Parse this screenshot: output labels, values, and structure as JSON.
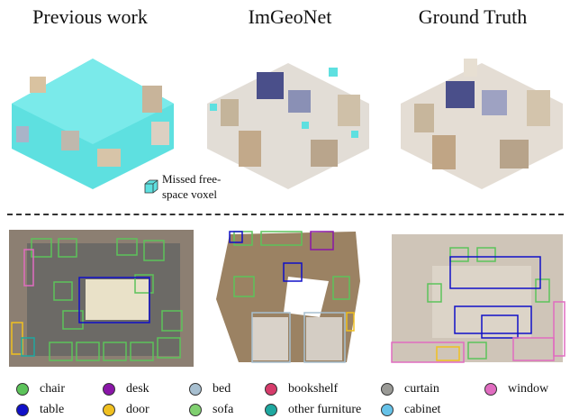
{
  "titles": [
    "Previous work",
    "ImGeoNet",
    "Ground Truth"
  ],
  "note": {
    "line1": "Missed free-",
    "line2": "space voxel",
    "color": "#5ee0e0"
  },
  "legend": [
    {
      "label": "chair",
      "color": "#5cc35a"
    },
    {
      "label": "desk",
      "color": "#8a16a8"
    },
    {
      "label": "bed",
      "color": "#a7bfd0"
    },
    {
      "label": "bookshelf",
      "color": "#d63c6b"
    },
    {
      "label": "curtain",
      "color": "#9a9a96"
    },
    {
      "label": "window",
      "color": "#e06cc0"
    },
    {
      "label": "table",
      "color": "#1010c8"
    },
    {
      "label": "door",
      "color": "#f0c020"
    },
    {
      "label": "sofa",
      "color": "#80d070"
    },
    {
      "label": "other furniture",
      "color": "#1ea8a0"
    },
    {
      "label": "cabinet",
      "color": "#66c2e8"
    }
  ]
}
